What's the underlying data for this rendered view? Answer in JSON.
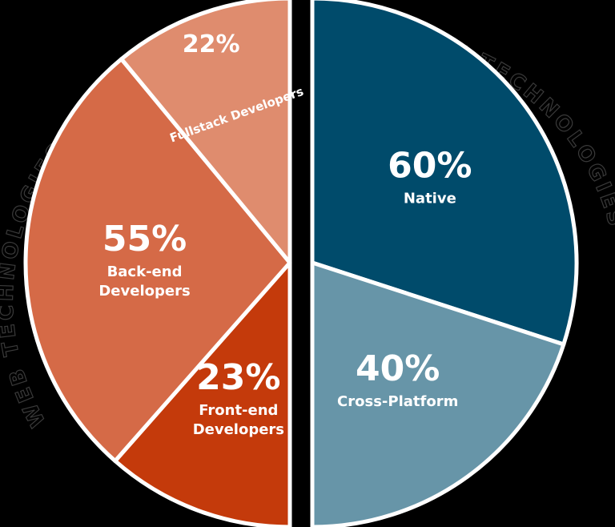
{
  "chart_data": {
    "type": "pie",
    "groups": [
      {
        "name": "MOBILE TECHNOLOGIES",
        "slices": [
          {
            "pct": "60%",
            "label": [
              "Native"
            ],
            "value": 60,
            "color": "#004b6b"
          },
          {
            "pct": "40%",
            "label": [
              "Cross-Platform"
            ],
            "value": 40,
            "color": "#6795a8"
          }
        ]
      },
      {
        "name": "WEB TECHNOLOGIES",
        "slices": [
          {
            "pct": "22%",
            "label": [
              "Fullstack Developers"
            ],
            "value": 22,
            "color": "#df8c6e"
          },
          {
            "pct": "55%",
            "label": [
              "Back-end",
              "Developers"
            ],
            "value": 55,
            "color": "#d56a47"
          },
          {
            "pct": "23%",
            "label": [
              "Front-end",
              "Developers"
            ],
            "value": 23,
            "color": "#c43a0b"
          }
        ]
      }
    ]
  }
}
